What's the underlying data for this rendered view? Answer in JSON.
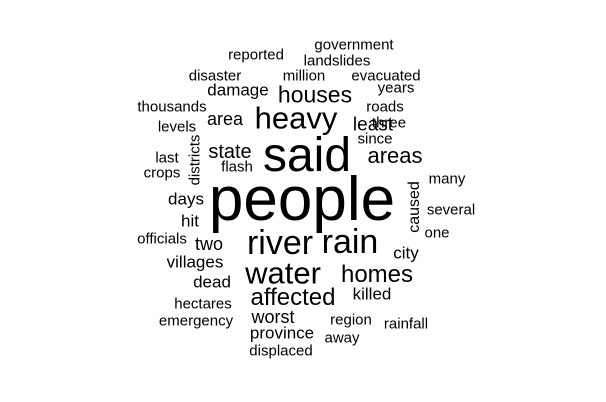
{
  "cloud": {
    "words": [
      "people",
      "said",
      "river",
      "rain",
      "water",
      "heavy",
      "homes",
      "affected",
      "houses",
      "areas",
      "government",
      "reported",
      "landslides",
      "disaster",
      "million",
      "evacuated",
      "years",
      "damage",
      "roads",
      "thousands",
      "three",
      "levels",
      "area",
      "least",
      "since",
      "state",
      "last",
      "districts",
      "flash",
      "crops",
      "many",
      "days",
      "caused",
      "several",
      "hit",
      "one",
      "officials",
      "two",
      "city",
      "villages",
      "dead",
      "killed",
      "hectares",
      "worst",
      "region",
      "emergency",
      "rainfall",
      "province",
      "away",
      "displaced"
    ]
  }
}
